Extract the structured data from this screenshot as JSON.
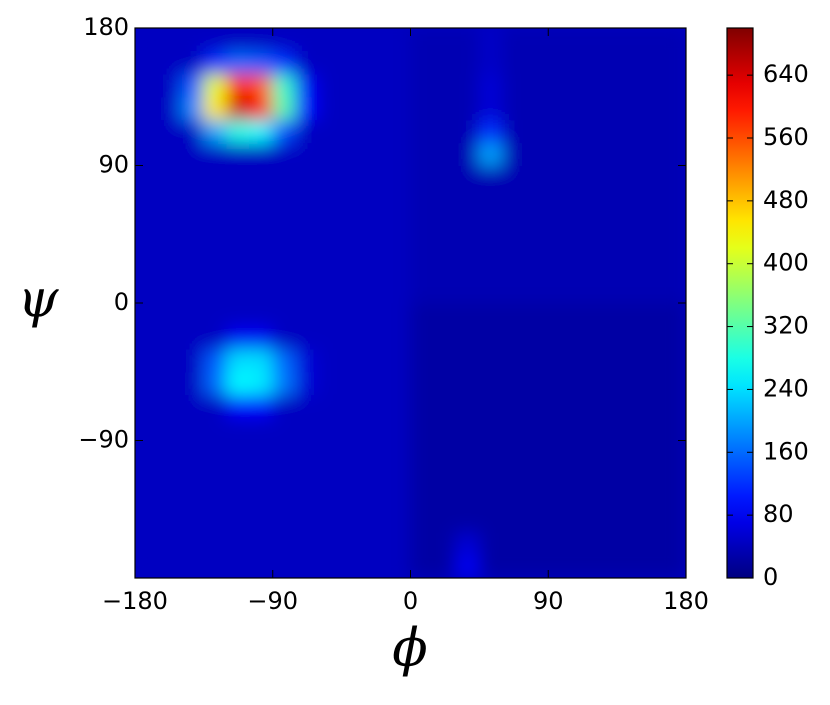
{
  "chart_data": {
    "type": "heatmap",
    "cmap": "jet",
    "xlabel": "ϕ",
    "ylabel": "ψ",
    "x": [
      -172.5,
      -157.5,
      -142.5,
      -127.5,
      -112.5,
      -97.5,
      -82.5,
      -67.5,
      -52.5,
      -37.5,
      -22.5,
      -7.5,
      7.5,
      22.5,
      37.5,
      52.5,
      67.5,
      82.5,
      97.5,
      112.5,
      127.5,
      142.5,
      157.5,
      172.5
    ],
    "y": [
      -172.5,
      -157.5,
      -142.5,
      -127.5,
      -112.5,
      -97.5,
      -82.5,
      -67.5,
      -52.5,
      -37.5,
      -22.5,
      -7.5,
      7.5,
      22.5,
      37.5,
      52.5,
      67.5,
      82.5,
      97.5,
      112.5,
      127.5,
      142.5,
      157.5,
      172.5
    ],
    "z": [
      [
        45,
        45,
        45,
        45,
        45,
        45,
        45,
        45,
        45,
        45,
        45,
        45,
        25,
        25,
        80,
        25,
        25,
        25,
        25,
        25,
        25,
        25,
        25,
        25
      ],
      [
        45,
        45,
        45,
        45,
        45,
        45,
        45,
        45,
        45,
        45,
        45,
        45,
        25,
        25,
        60,
        25,
        25,
        25,
        25,
        25,
        25,
        25,
        25,
        25
      ],
      [
        45,
        45,
        45,
        45,
        45,
        45,
        45,
        45,
        45,
        45,
        45,
        45,
        25,
        25,
        25,
        25,
        25,
        25,
        25,
        25,
        25,
        25,
        25,
        25
      ],
      [
        45,
        45,
        45,
        45,
        45,
        45,
        45,
        45,
        45,
        45,
        45,
        45,
        25,
        25,
        25,
        25,
        25,
        25,
        25,
        25,
        25,
        25,
        25,
        25
      ],
      [
        45,
        45,
        45,
        45,
        45,
        45,
        45,
        45,
        45,
        45,
        45,
        45,
        25,
        25,
        25,
        25,
        25,
        25,
        25,
        25,
        25,
        25,
        25,
        25
      ],
      [
        45,
        45,
        45,
        45,
        45,
        45,
        45,
        45,
        45,
        45,
        45,
        45,
        25,
        25,
        25,
        25,
        25,
        25,
        25,
        25,
        25,
        25,
        25,
        25
      ],
      [
        45,
        45,
        45,
        45,
        45,
        45,
        45,
        45,
        45,
        45,
        45,
        45,
        25,
        25,
        25,
        25,
        25,
        25,
        25,
        25,
        25,
        25,
        25,
        25
      ],
      [
        45,
        45,
        45,
        45,
        90,
        90,
        45,
        45,
        45,
        45,
        45,
        45,
        25,
        25,
        25,
        25,
        25,
        25,
        25,
        25,
        25,
        25,
        25,
        25
      ],
      [
        45,
        45,
        45,
        160,
        260,
        250,
        170,
        60,
        45,
        45,
        45,
        45,
        25,
        25,
        25,
        25,
        25,
        25,
        25,
        25,
        25,
        25,
        25,
        25
      ],
      [
        45,
        45,
        45,
        150,
        240,
        240,
        160,
        60,
        45,
        45,
        45,
        45,
        25,
        25,
        25,
        25,
        25,
        25,
        25,
        25,
        25,
        25,
        25,
        25
      ],
      [
        45,
        45,
        45,
        45,
        80,
        80,
        45,
        45,
        45,
        45,
        45,
        45,
        25,
        25,
        25,
        25,
        25,
        25,
        25,
        25,
        25,
        25,
        25,
        25
      ],
      [
        45,
        45,
        45,
        45,
        45,
        45,
        45,
        45,
        45,
        45,
        45,
        45,
        25,
        25,
        25,
        25,
        25,
        25,
        25,
        25,
        25,
        25,
        25,
        25
      ],
      [
        45,
        45,
        45,
        45,
        45,
        45,
        45,
        45,
        45,
        45,
        45,
        45,
        35,
        35,
        35,
        35,
        35,
        35,
        35,
        35,
        35,
        35,
        35,
        35
      ],
      [
        45,
        45,
        45,
        45,
        45,
        45,
        45,
        45,
        45,
        45,
        45,
        45,
        35,
        35,
        35,
        35,
        35,
        35,
        35,
        35,
        35,
        35,
        35,
        35
      ],
      [
        45,
        45,
        45,
        45,
        45,
        45,
        45,
        45,
        45,
        45,
        45,
        45,
        35,
        35,
        35,
        35,
        35,
        35,
        35,
        35,
        35,
        35,
        35,
        35
      ],
      [
        45,
        45,
        45,
        45,
        45,
        45,
        45,
        45,
        45,
        45,
        45,
        45,
        35,
        35,
        35,
        35,
        35,
        35,
        35,
        35,
        35,
        35,
        35,
        35
      ],
      [
        45,
        45,
        45,
        45,
        45,
        45,
        45,
        45,
        45,
        45,
        45,
        45,
        35,
        35,
        35,
        35,
        35,
        35,
        35,
        35,
        35,
        35,
        35,
        35
      ],
      [
        45,
        45,
        45,
        45,
        45,
        45,
        45,
        45,
        45,
        45,
        45,
        45,
        35,
        35,
        35,
        35,
        35,
        35,
        35,
        35,
        35,
        35,
        35,
        35
      ],
      [
        45,
        45,
        45,
        45,
        45,
        45,
        45,
        45,
        45,
        45,
        45,
        45,
        35,
        35,
        35,
        200,
        35,
        35,
        35,
        35,
        35,
        35,
        35,
        35
      ],
      [
        45,
        45,
        45,
        200,
        280,
        260,
        140,
        45,
        45,
        45,
        45,
        45,
        35,
        35,
        35,
        120,
        35,
        35,
        35,
        35,
        35,
        35,
        35,
        35
      ],
      [
        45,
        45,
        180,
        450,
        650,
        600,
        320,
        90,
        45,
        45,
        45,
        45,
        35,
        35,
        35,
        60,
        35,
        35,
        35,
        35,
        35,
        35,
        35,
        35
      ],
      [
        45,
        45,
        150,
        420,
        600,
        550,
        300,
        80,
        45,
        45,
        45,
        45,
        35,
        35,
        35,
        60,
        35,
        35,
        35,
        35,
        35,
        35,
        35,
        35
      ],
      [
        45,
        45,
        45,
        120,
        160,
        150,
        120,
        45,
        45,
        45,
        45,
        45,
        35,
        35,
        35,
        50,
        35,
        35,
        35,
        35,
        35,
        35,
        35,
        35
      ],
      [
        45,
        45,
        45,
        45,
        45,
        45,
        45,
        45,
        45,
        45,
        45,
        45,
        35,
        35,
        35,
        50,
        35,
        35,
        35,
        35,
        35,
        35,
        35,
        35
      ]
    ],
    "xlim": [
      -180,
      180
    ],
    "ylim": [
      -180,
      180
    ],
    "xticks": [
      {
        "value": -180,
        "label": "−180"
      },
      {
        "value": -90,
        "label": "−90"
      },
      0,
      90,
      180
    ],
    "yticks": [
      {
        "value": -90,
        "label": "−90"
      },
      0,
      90,
      180
    ],
    "clim": [
      0,
      700
    ],
    "cticks": [
      0,
      80,
      160,
      240,
      320,
      400,
      480,
      560,
      640
    ]
  }
}
